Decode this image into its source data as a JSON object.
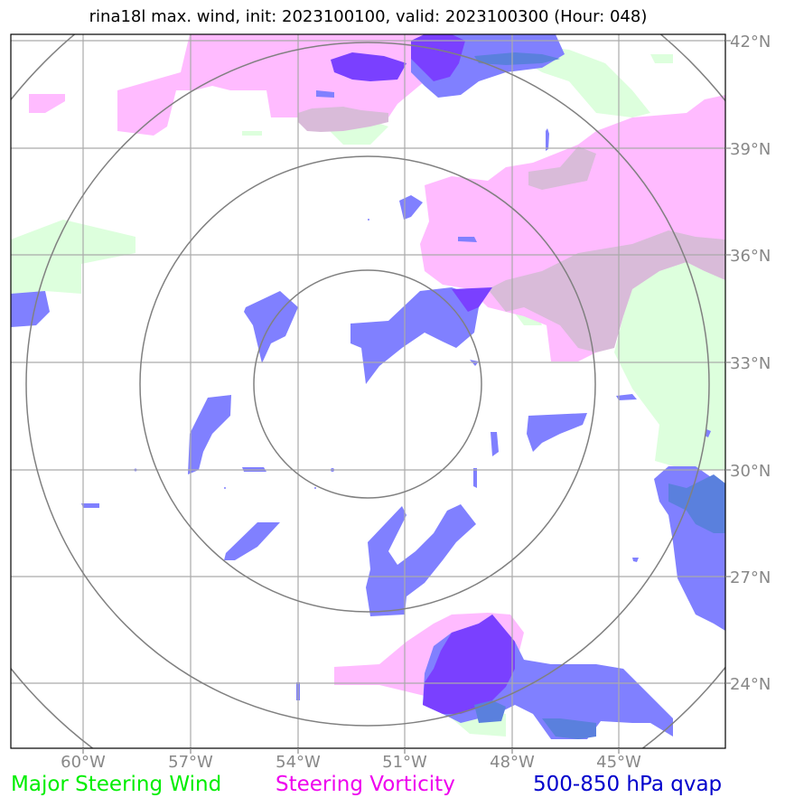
{
  "title": "rina18l max. wind, init: 2023100100, valid: 2023100300 (Hour: 048)",
  "axes": {
    "lon_labels": [
      "60°W",
      "57°W",
      "54°W",
      "51°W",
      "48°W",
      "45°W"
    ],
    "lat_labels": [
      "42°N",
      "39°N",
      "36°N",
      "33°N",
      "30°N",
      "27°N",
      "24°N"
    ]
  },
  "legend": [
    {
      "label": "Major Steering Wind",
      "color": "#00ee00"
    },
    {
      "label": "Steering Vorticity",
      "color": "#ee00ee"
    },
    {
      "label": "500-850 hPa qvap",
      "color": "#0000cc"
    }
  ],
  "colors": {
    "wind_fill": "#ddffdd",
    "vorticity_fill": "#ffbbff",
    "qvap_fill": "#8080ff",
    "qvap_dark": "#7a40ff",
    "overlap_fill": "#d9bbd9",
    "overlap_blue": "#5a80dd",
    "grid": "#aaaaaa",
    "range_rings": "#808080"
  }
}
